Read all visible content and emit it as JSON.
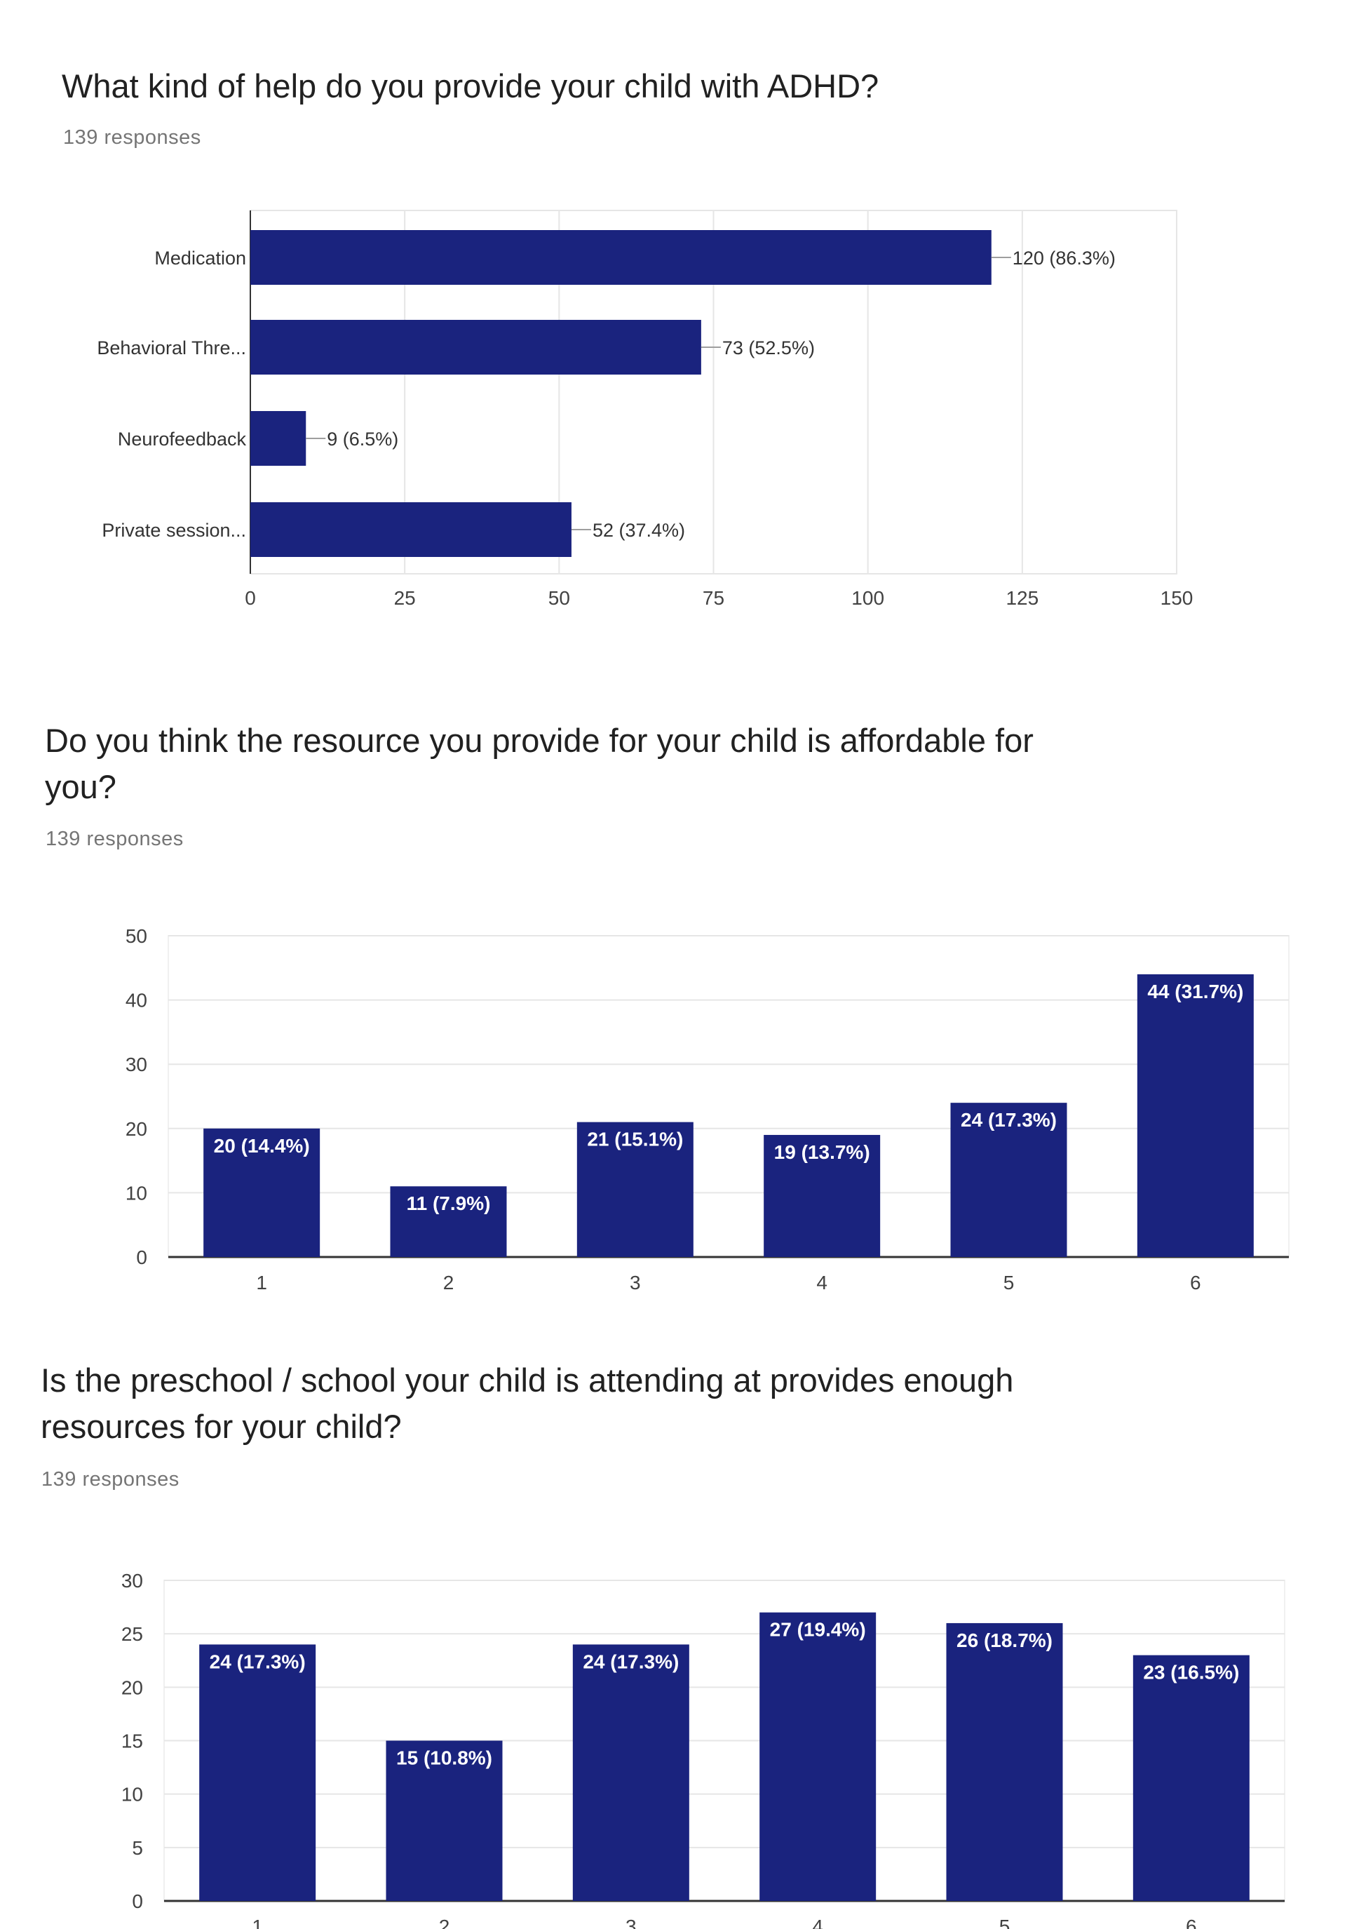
{
  "colors": {
    "bar": "#1a237e",
    "grid": "#e6e6e6",
    "axis": "#333333",
    "tick_text": "#424242",
    "label_text": "#333333"
  },
  "questions": [
    {
      "title": "What kind of help do you provide your child with ADHD?",
      "responses": "139 responses"
    },
    {
      "title_line1": "Do you think the resource you provide for your child is affordable for",
      "title_line2": "you?",
      "responses": "139 responses"
    },
    {
      "title_line1": "Is the preschool / school your child is attending at provides enough",
      "title_line2": "resources for your child?",
      "responses": "139 responses"
    }
  ],
  "chart_data": [
    {
      "type": "bar",
      "orientation": "horizontal",
      "categories": [
        "Medication",
        "Behavioral Thre...",
        "Neurofeedback",
        "Private session..."
      ],
      "values": [
        120,
        73,
        9,
        52
      ],
      "data_labels": [
        "120 (86.3%)",
        "73 (52.5%)",
        "9 (6.5%)",
        "52 (37.4%)"
      ],
      "xlim": [
        0,
        150
      ],
      "xticks": [
        0,
        25,
        50,
        75,
        100,
        125,
        150
      ],
      "grid": true
    },
    {
      "type": "bar",
      "orientation": "vertical",
      "categories": [
        "1",
        "2",
        "3",
        "4",
        "5",
        "6"
      ],
      "values": [
        20,
        11,
        21,
        19,
        24,
        44
      ],
      "data_labels": [
        "20 (14.4%)",
        "11 (7.9%)",
        "21 (15.1%)",
        "19 (13.7%)",
        "24 (17.3%)",
        "44 (31.7%)"
      ],
      "ylim": [
        0,
        50
      ],
      "yticks": [
        0,
        10,
        20,
        30,
        40,
        50
      ],
      "grid": true
    },
    {
      "type": "bar",
      "orientation": "vertical",
      "categories": [
        "1",
        "2",
        "3",
        "4",
        "5",
        "6"
      ],
      "values": [
        24,
        15,
        24,
        27,
        26,
        23
      ],
      "data_labels": [
        "24 (17.3%)",
        "15 (10.8%)",
        "24 (17.3%)",
        "27 (19.4%)",
        "26 (18.7%)",
        "23 (16.5%)"
      ],
      "ylim": [
        0,
        30
      ],
      "yticks": [
        0,
        5,
        10,
        15,
        20,
        25,
        30
      ],
      "grid": true
    }
  ]
}
